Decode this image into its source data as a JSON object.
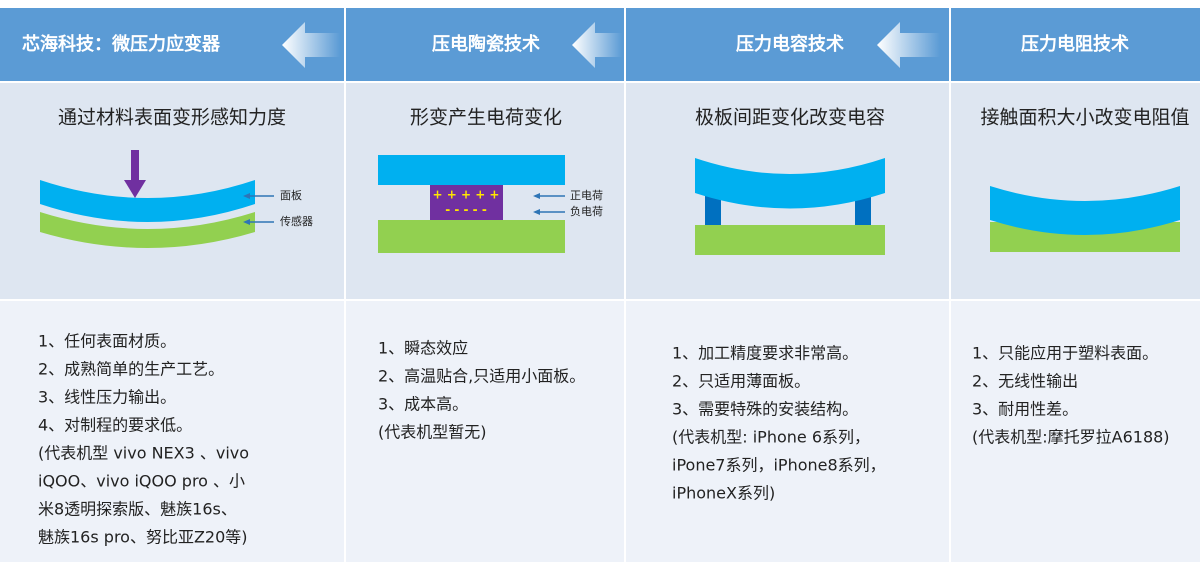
{
  "columns": [
    {
      "title": "芯海科技：微压力应变器",
      "principle": "通过材料表面变形感知力度",
      "features": [
        "1、任何表面材质。",
        "2、成熟简单的生产工艺。",
        "3、线性压力输出。",
        "4、对制程的要求低。",
        "(代表机型 vivo NEX3 、vivo",
        "iQOO、vivo iQOO pro 、小",
        "米8透明探索版、魅族16s、",
        "魅族16s pro、努比亚Z20等)"
      ]
    },
    {
      "title": "压电陶瓷技术",
      "principle": "形变产生电荷变化",
      "features": [
        "1、瞬态效应",
        "2、高温贴合,只适用小面板。",
        "3、成本高。",
        "(代表机型暂无)"
      ]
    },
    {
      "title": "压力电容技术",
      "principle": "极板间距变化改变电容",
      "features": [
        "1、加工精度要求非常高。",
        "2、只适用薄面板。",
        "3、需要特殊的安装结构。",
        "(代表机型: iPhone 6系列，",
        "iPone7系列，iPhone8系列，",
        "iPhoneX系列)"
      ]
    },
    {
      "title": "压力电阻技术",
      "principle": "接触面积大小改变电阻值",
      "features": [
        "1、只能应用于塑料表面。",
        "2、无线性输出",
        "3、耐用性差。",
        "(代表机型:摩托罗拉A6188)"
      ]
    }
  ],
  "diagram_labels": {
    "panel": "面板",
    "sensor": "传感器",
    "positive": "正电荷",
    "negative": "负电荷",
    "plus_signs": "+ + + + +",
    "minus_signs": "- - - - -"
  }
}
